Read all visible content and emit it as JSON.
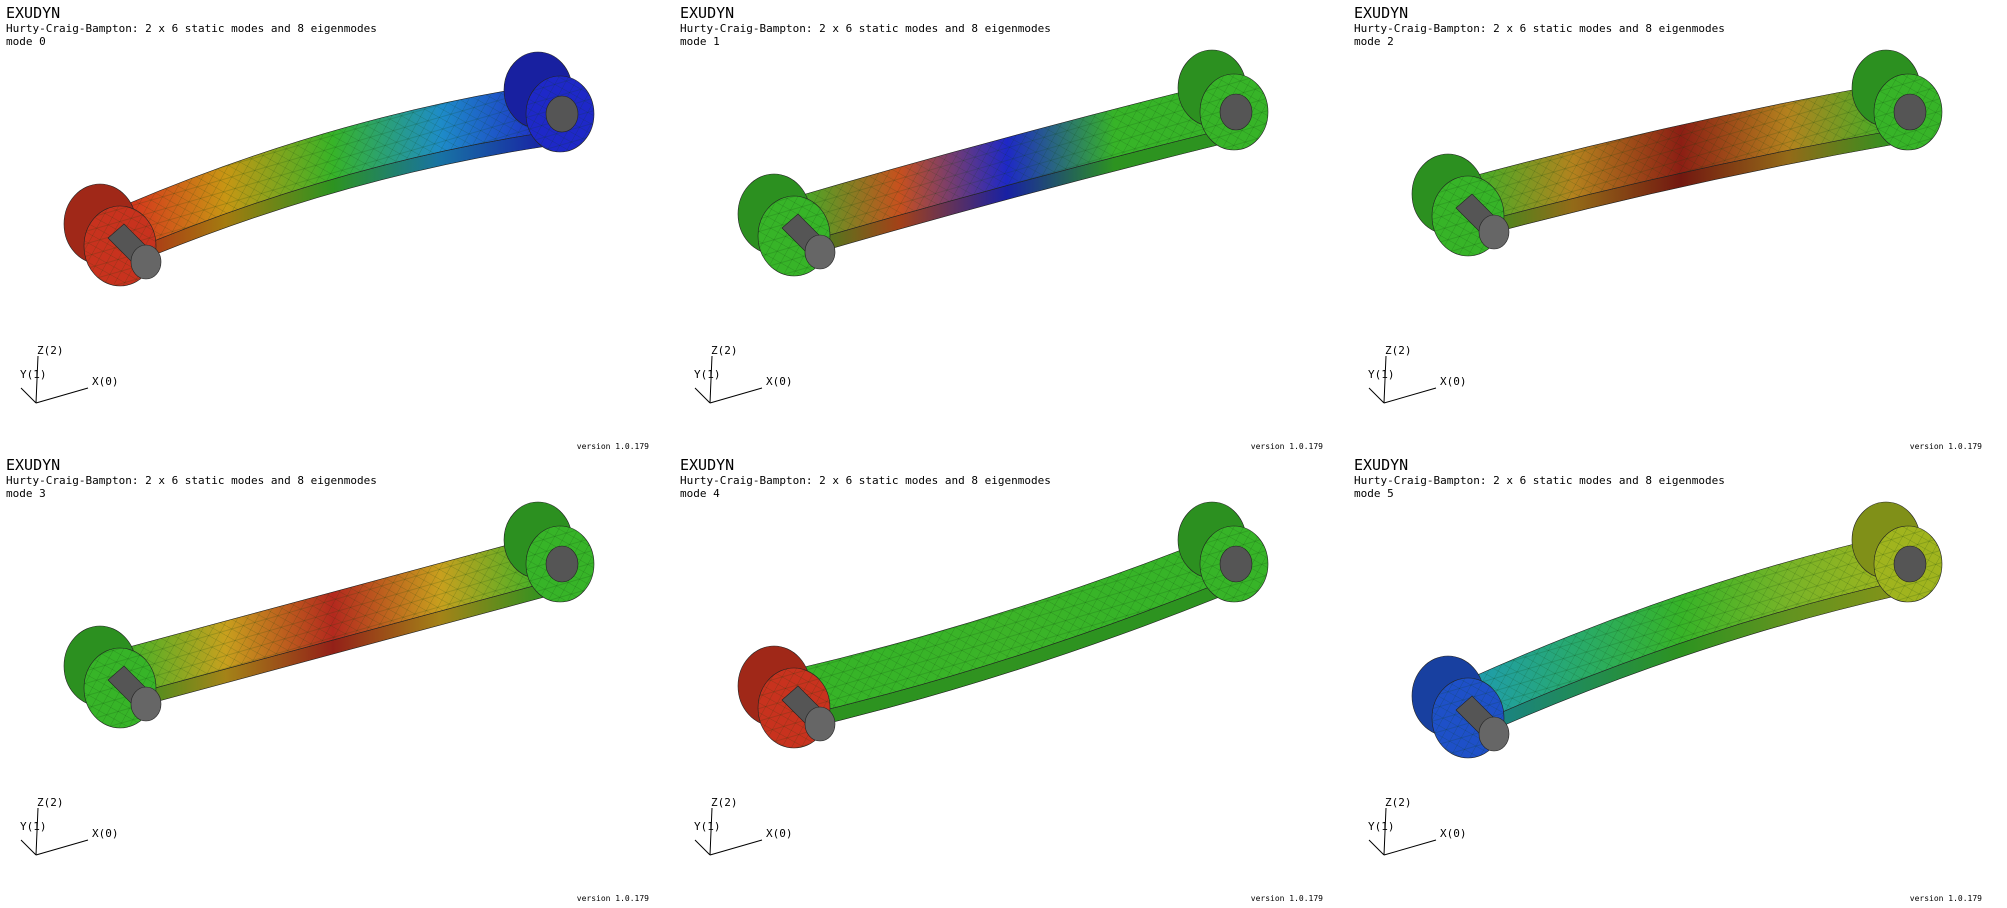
{
  "app_title": "EXUDYN",
  "panels": [
    {
      "title": "EXUDYN",
      "subtitle": "Hurty-Craig-Bampton: 2 x 6 static modes and 8 eigenmodes",
      "mode_label": "mode 0",
      "version": "version 1.0.179",
      "axes": {
        "x": "X(0)",
        "y": "Y(1)",
        "z": "Z(2)"
      },
      "colors": {
        "left_boss": "#c8321e",
        "beam": [
          "#d7281e",
          "#c89614",
          "#37b428",
          "#1e8cc8",
          "#1e28c8"
        ],
        "right_boss": "#1e28c8"
      }
    },
    {
      "title": "EXUDYN",
      "subtitle": "Hurty-Craig-Bampton: 2 x 6 static modes and 8 eigenmodes",
      "mode_label": "mode 1",
      "version": "version 1.0.179",
      "axes": {
        "x": "X(0)",
        "y": "Y(1)",
        "z": "Z(2)"
      },
      "colors": {
        "left_boss": "#37b428",
        "beam": [
          "#37b428",
          "#c8501e",
          "#1e28c8",
          "#37b428",
          "#37b428"
        ],
        "right_boss": "#37b428"
      }
    },
    {
      "title": "EXUDYN",
      "subtitle": "Hurty-Craig-Bampton: 2 x 6 static modes and 8 eigenmodes",
      "mode_label": "mode 2",
      "version": "version 1.0.179",
      "axes": {
        "x": "X(0)",
        "y": "Y(1)",
        "z": "Z(2)"
      },
      "colors": {
        "left_boss": "#37b428",
        "beam": [
          "#37b428",
          "#b4821e",
          "#8c1e14",
          "#b4821e",
          "#37b428"
        ],
        "right_boss": "#37b428"
      }
    },
    {
      "title": "EXUDYN",
      "subtitle": "Hurty-Craig-Bampton: 2 x 6 static modes and 8 eigenmodes",
      "mode_label": "mode 3",
      "version": "version 1.0.179",
      "axes": {
        "x": "X(0)",
        "y": "Y(1)",
        "z": "Z(2)"
      },
      "colors": {
        "left_boss": "#37b428",
        "beam": [
          "#37b428",
          "#c8a01e",
          "#b4281e",
          "#c8a01e",
          "#37b428"
        ],
        "right_boss": "#37b428"
      }
    },
    {
      "title": "EXUDYN",
      "subtitle": "Hurty-Craig-Bampton: 2 x 6 static modes and 8 eigenmodes",
      "mode_label": "mode 4",
      "version": "version 1.0.179",
      "axes": {
        "x": "X(0)",
        "y": "Y(1)",
        "z": "Z(2)"
      },
      "colors": {
        "left_boss": "#c8321e",
        "beam": [
          "#37b428",
          "#37b428",
          "#3cb428",
          "#37b428",
          "#37b428"
        ],
        "right_boss": "#37b428"
      }
    },
    {
      "title": "EXUDYN",
      "subtitle": "Hurty-Craig-Bampton: 2 x 6 static modes and 8 eigenmodes",
      "mode_label": "mode 5",
      "version": "version 1.0.179",
      "axes": {
        "x": "X(0)",
        "y": "Y(1)",
        "z": "Z(2)"
      },
      "colors": {
        "left_boss": "#1e50c8",
        "beam": [
          "#1e9bb4",
          "#28aa6e",
          "#37b428",
          "#78b428",
          "#a0b41e"
        ],
        "right_boss": "#a0b41e"
      }
    }
  ]
}
